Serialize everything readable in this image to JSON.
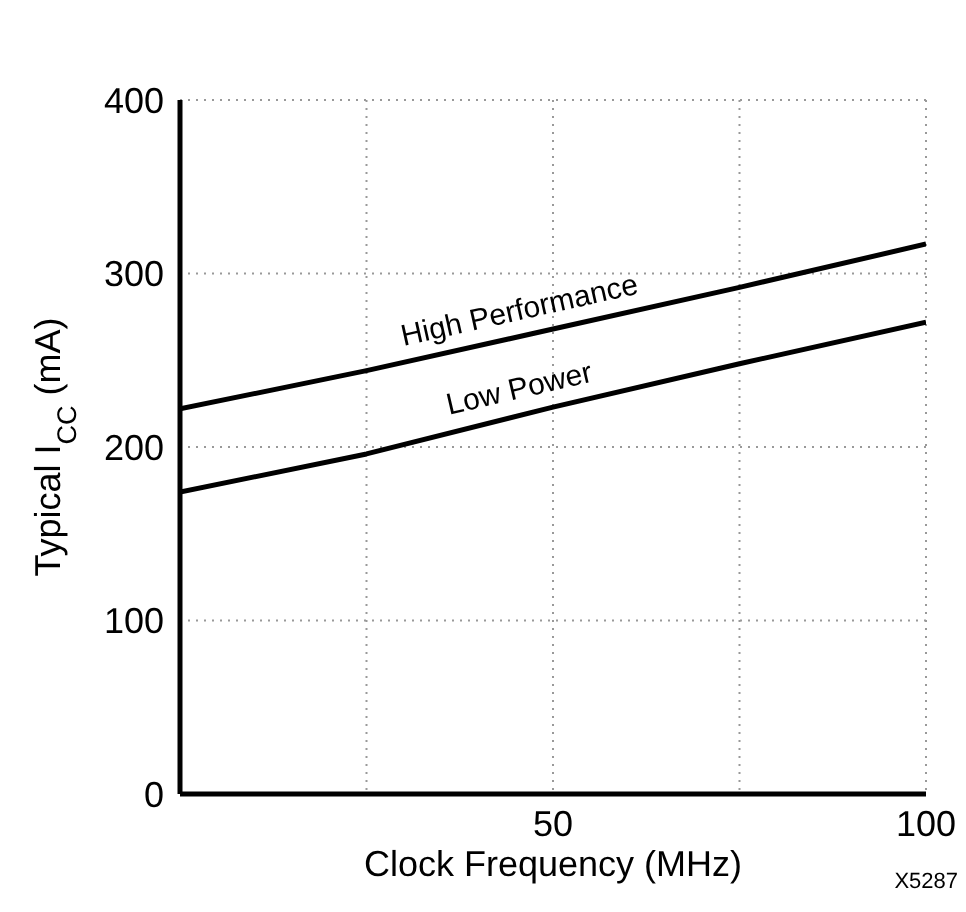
{
  "chart_data": {
    "type": "line",
    "xlabel": "Clock Frequency (MHz)",
    "ylabel": "Typical I$_{CC}$ (mA)",
    "x": [
      0,
      25,
      50,
      75,
      100
    ],
    "series": [
      {
        "name": "High Performance",
        "color": "#000000",
        "values": [
          222,
          244,
          268,
          292,
          317
        ]
      },
      {
        "name": "Low Power",
        "color": "#000000",
        "values": [
          174,
          196,
          223,
          248,
          272
        ]
      }
    ],
    "xlim": [
      0,
      100
    ],
    "xticks": [
      {
        "value": 0,
        "label": null
      },
      {
        "value": 25,
        "label": null
      },
      50,
      {
        "value": 75,
        "label": null
      },
      100
    ],
    "ylim": [
      0,
      400
    ],
    "yticks": [
      0,
      100,
      200,
      300,
      400
    ],
    "grid": true,
    "annotations": [
      "X5287"
    ]
  }
}
